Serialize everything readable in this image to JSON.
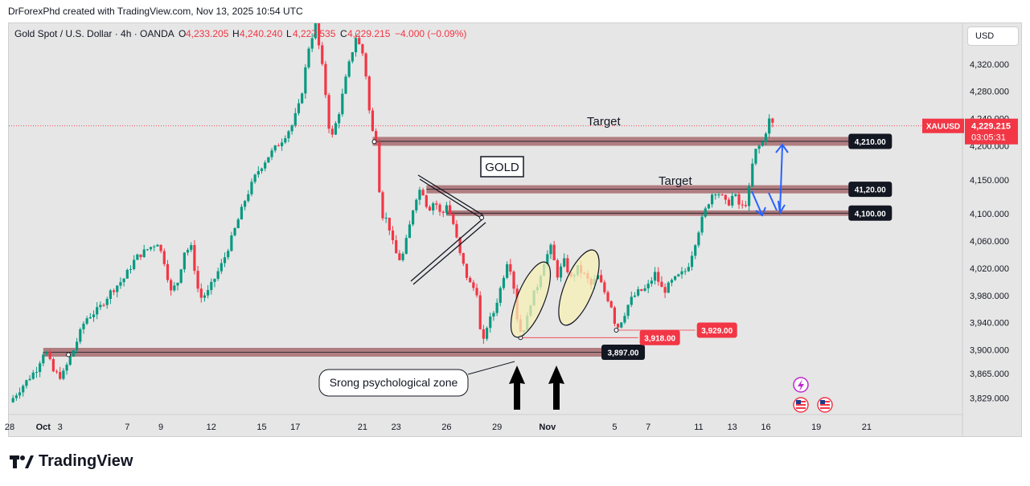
{
  "header": {
    "credit": "DrForexPhd created with TradingView.com, Nov 13, 2025 10:54 UTC"
  },
  "chart_data": {
    "type": "candlestick",
    "symbol_line": "Gold Spot / U.S. Dollar · 4h · OANDA",
    "ohlc": {
      "o_label": "O",
      "o": "4,233.205",
      "h_label": "H",
      "h": "4,240.240",
      "l_label": "L",
      "l": "4,227.535",
      "c_label": "C",
      "c": "4,229.215",
      "change": "−4.000 (−0.09%)"
    },
    "currency_button": "USD",
    "ylim": [
      3805,
      4380
    ],
    "y_ticks": [
      {
        "value": 4320,
        "label": "4,320.000"
      },
      {
        "value": 4280,
        "label": "4,280.000"
      },
      {
        "value": 4240,
        "label": "4,240.000"
      },
      {
        "value": 4200,
        "label": "4,200.000"
      },
      {
        "value": 4150,
        "label": "4,150.000"
      },
      {
        "value": 4100,
        "label": "4,100.000"
      },
      {
        "value": 4060,
        "label": "4,060.000"
      },
      {
        "value": 4020,
        "label": "4,020.000"
      },
      {
        "value": 3980,
        "label": "3,980.000"
      },
      {
        "value": 3940,
        "label": "3,940.000"
      },
      {
        "value": 3900,
        "label": "3,900.000"
      },
      {
        "value": 3865,
        "label": "3,865.000"
      },
      {
        "value": 3829,
        "label": "3,829.000"
      }
    ],
    "x_ticks": [
      {
        "day": 0,
        "label": "28"
      },
      {
        "day": 2,
        "label": "Oct"
      },
      {
        "day": 3,
        "label": "3"
      },
      {
        "day": 7,
        "label": "7"
      },
      {
        "day": 9,
        "label": "9"
      },
      {
        "day": 12,
        "label": "12"
      },
      {
        "day": 15,
        "label": "15"
      },
      {
        "day": 17,
        "label": "17"
      },
      {
        "day": 21,
        "label": "21"
      },
      {
        "day": 23,
        "label": "23"
      },
      {
        "day": 26,
        "label": "26"
      },
      {
        "day": 29,
        "label": "29"
      },
      {
        "day": 32,
        "label": "Nov"
      },
      {
        "day": 36,
        "label": "5"
      },
      {
        "day": 38,
        "label": "7"
      },
      {
        "day": 41,
        "label": "11"
      },
      {
        "day": 43,
        "label": "13"
      },
      {
        "day": 45,
        "label": "16"
      },
      {
        "day": 48,
        "label": "19"
      },
      {
        "day": 51,
        "label": "21"
      }
    ],
    "price_path": [
      [
        0,
        3823
      ],
      [
        0.8,
        3848
      ],
      [
        1.6,
        3872
      ],
      [
        2.1,
        3902
      ],
      [
        2.6,
        3868
      ],
      [
        3.1,
        3860
      ],
      [
        3.8,
        3900
      ],
      [
        4.5,
        3945
      ],
      [
        5.3,
        3960
      ],
      [
        6.0,
        3985
      ],
      [
        6.8,
        4005
      ],
      [
        7.5,
        4035
      ],
      [
        8.2,
        4048
      ],
      [
        8.8,
        4058
      ],
      [
        9.2,
        4030
      ],
      [
        9.6,
        3985
      ],
      [
        10.0,
        4000
      ],
      [
        10.4,
        4045
      ],
      [
        10.8,
        4050
      ],
      [
        11.3,
        3975
      ],
      [
        11.8,
        3985
      ],
      [
        12.2,
        4005
      ],
      [
        12.7,
        4030
      ],
      [
        13.3,
        4070
      ],
      [
        14.0,
        4120
      ],
      [
        14.7,
        4160
      ],
      [
        15.4,
        4185
      ],
      [
        16.1,
        4205
      ],
      [
        16.8,
        4230
      ],
      [
        17.3,
        4265
      ],
      [
        17.8,
        4345
      ],
      [
        18.2,
        4378
      ],
      [
        18.7,
        4300
      ],
      [
        19.1,
        4205
      ],
      [
        19.6,
        4250
      ],
      [
        20.1,
        4310
      ],
      [
        20.6,
        4360
      ],
      [
        21.1,
        4330
      ],
      [
        21.5,
        4225
      ],
      [
        21.8,
        4210
      ],
      [
        22.1,
        4100
      ],
      [
        22.5,
        4090
      ],
      [
        22.9,
        4045
      ],
      [
        23.3,
        4030
      ],
      [
        23.7,
        4070
      ],
      [
        24.1,
        4120
      ],
      [
        24.5,
        4140
      ],
      [
        24.9,
        4105
      ],
      [
        25.3,
        4120
      ],
      [
        25.7,
        4095
      ],
      [
        26.0,
        4115
      ],
      [
        26.4,
        4085
      ],
      [
        26.8,
        4040
      ],
      [
        27.3,
        4000
      ],
      [
        27.8,
        3985
      ],
      [
        28.1,
        3900
      ],
      [
        28.4,
        3935
      ],
      [
        28.8,
        3955
      ],
      [
        29.2,
        3990
      ],
      [
        29.6,
        4030
      ],
      [
        29.9,
        4015
      ],
      [
        30.3,
        3925
      ],
      [
        30.7,
        3935
      ],
      [
        31.0,
        3970
      ],
      [
        31.4,
        3995
      ],
      [
        31.8,
        4030
      ],
      [
        32.2,
        4050
      ],
      [
        32.6,
        4010
      ],
      [
        33.0,
        4030
      ],
      [
        33.4,
        4005
      ],
      [
        33.8,
        4020
      ],
      [
        34.2,
        4010
      ],
      [
        34.6,
        3995
      ],
      [
        35.0,
        4008
      ],
      [
        35.4,
        3985
      ],
      [
        35.8,
        3965
      ],
      [
        36.1,
        3930
      ],
      [
        36.5,
        3948
      ],
      [
        36.9,
        3972
      ],
      [
        37.4,
        3985
      ],
      [
        37.9,
        3990
      ],
      [
        38.4,
        4012
      ],
      [
        38.9,
        3985
      ],
      [
        39.4,
        4000
      ],
      [
        39.9,
        4010
      ],
      [
        40.3,
        4018
      ],
      [
        40.7,
        4050
      ],
      [
        41.1,
        4085
      ],
      [
        41.5,
        4112
      ],
      [
        41.9,
        4135
      ],
      [
        42.3,
        4128
      ],
      [
        42.7,
        4112
      ],
      [
        43.1,
        4130
      ],
      [
        43.5,
        4108
      ],
      [
        43.9,
        4118
      ],
      [
        44.3,
        4190
      ],
      [
        44.8,
        4205
      ],
      [
        45.2,
        4238
      ],
      [
        45.5,
        4229
      ]
    ],
    "zones": [
      {
        "name": "target-zone-upper",
        "y_top": 4213,
        "y_bottom": 4200,
        "x_from": 21.6,
        "x_to": 52.5,
        "label": "4,210.00"
      },
      {
        "name": "target-zone-middle",
        "y_top": 4142,
        "y_bottom": 4130,
        "x_from": 24.8,
        "x_to": 52.5,
        "label": "41,20.00"
      },
      {
        "name": "target-zone-lower",
        "y_top": 4105,
        "y_bottom": 4097,
        "x_from": 26.0,
        "x_to": 52.5,
        "label": "4,100.00"
      },
      {
        "name": "support-zone",
        "y_top": 3903,
        "y_bottom": 3890,
        "x_from": 2.0,
        "x_to": 37.8,
        "label": "3,897.00"
      }
    ],
    "level_lines": [
      {
        "name": "line-3918",
        "y": 3918,
        "x_from": 30.4,
        "x_to": 37.4,
        "label": "3,918.00"
      },
      {
        "name": "line-3929",
        "y": 3929,
        "x_from": 36.1,
        "x_to": 40.8,
        "label": "3,929.00"
      }
    ],
    "annotations": {
      "target_upper": "Target",
      "target_middle": "Target",
      "gold_box": "GOLD",
      "psych_zone": "Srong psychological zone"
    },
    "last_price": {
      "value": 4229.215,
      "symbol": "XAUUSD",
      "price_label": "4,229.215",
      "countdown": "03:05:31"
    },
    "colors": {
      "up": "#089981",
      "down": "#f23645",
      "zone_fill": "#9e5a5e",
      "frame_bg": "#e6e6e6",
      "label_bg": "#131722",
      "accent_blue": "#2962ff"
    }
  },
  "footer": {
    "brand": "TradingView"
  }
}
